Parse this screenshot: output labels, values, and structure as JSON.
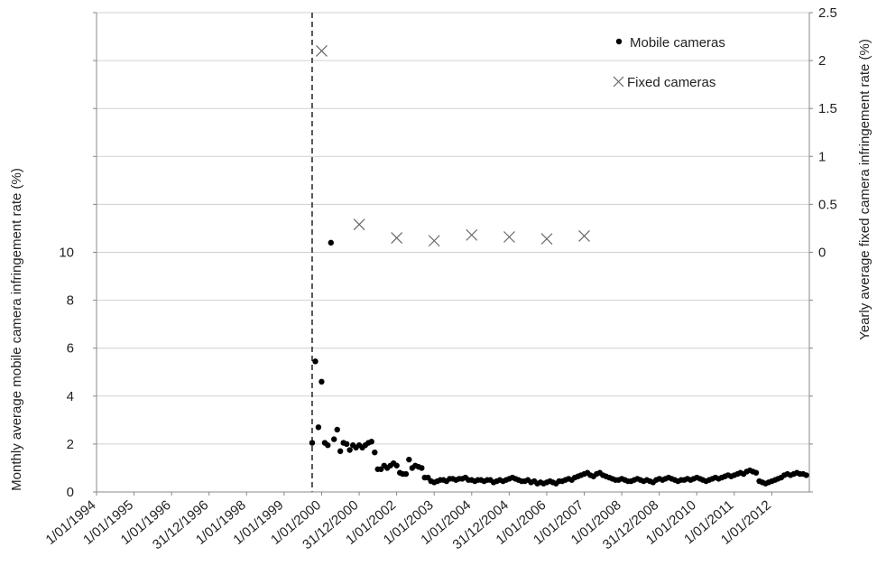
{
  "chart_data": {
    "type": "scatter",
    "title": "",
    "ylabel_left": "Monthly average mobile camera infringement rate (%)",
    "ylabel_right": "Yearly average fixed camera infringement rate (%)",
    "x_tick_labels": [
      "1/01/1994",
      "1/01/1995",
      "1/01/1996",
      "31/12/1996",
      "1/01/1998",
      "1/01/1999",
      "1/01/2000",
      "31/12/2000",
      "1/01/2002",
      "1/01/2003",
      "1/01/2004",
      "31/12/2004",
      "1/01/2006",
      "1/01/2007",
      "1/01/2008",
      "31/12/2008",
      "1/01/2010",
      "1/01/2011",
      "1/01/2012"
    ],
    "x_range": [
      "1994-01-01",
      "2012-12-31"
    ],
    "y_left_ticks": [
      "0",
      "2",
      "4",
      "6",
      "8",
      "10"
    ],
    "y_left_range": [
      0,
      20
    ],
    "y_right_ticks": [
      "0",
      "0.5",
      "1",
      "1.5",
      "2",
      "2.5"
    ],
    "y_right_range": [
      -2.5,
      2.5
    ],
    "event_line_date": "1999-10-01",
    "grid": "horizontal",
    "legend_position": "top-right",
    "series": [
      {
        "name": "Mobile cameras",
        "axis": "left",
        "marker": "dot",
        "color": "#000000",
        "values": [
          [
            "1999-10-01",
            2.05
          ],
          [
            "1999-11-01",
            5.45
          ],
          [
            "1999-12-01",
            2.7
          ],
          [
            "2000-01-01",
            4.6
          ],
          [
            "2000-02-01",
            2.05
          ],
          [
            "2000-03-01",
            1.95
          ],
          [
            "2000-04-01",
            10.4
          ],
          [
            "2000-05-01",
            2.2
          ],
          [
            "2000-06-01",
            2.6
          ],
          [
            "2000-07-01",
            1.7
          ],
          [
            "2000-08-01",
            2.05
          ],
          [
            "2000-09-01",
            2.0
          ],
          [
            "2000-10-01",
            1.75
          ],
          [
            "2000-11-01",
            1.95
          ],
          [
            "2000-12-01",
            1.85
          ],
          [
            "2001-01-01",
            1.95
          ],
          [
            "2001-02-01",
            1.85
          ],
          [
            "2001-03-01",
            1.95
          ],
          [
            "2001-04-01",
            2.05
          ],
          [
            "2001-05-01",
            2.1
          ],
          [
            "2001-06-01",
            1.65
          ],
          [
            "2001-07-01",
            0.95
          ],
          [
            "2001-08-01",
            0.95
          ],
          [
            "2001-09-01",
            1.1
          ],
          [
            "2001-10-01",
            1.0
          ],
          [
            "2001-11-01",
            1.1
          ],
          [
            "2001-12-01",
            1.2
          ],
          [
            "2002-01-01",
            1.1
          ],
          [
            "2002-02-01",
            0.8
          ],
          [
            "2002-03-01",
            0.75
          ],
          [
            "2002-04-01",
            0.75
          ],
          [
            "2002-05-01",
            1.35
          ],
          [
            "2002-06-01",
            1.0
          ],
          [
            "2002-07-01",
            1.1
          ],
          [
            "2002-08-01",
            1.05
          ],
          [
            "2002-09-01",
            1.0
          ],
          [
            "2002-10-01",
            0.6
          ],
          [
            "2002-11-01",
            0.6
          ],
          [
            "2002-12-01",
            0.45
          ],
          [
            "2003-01-01",
            0.4
          ],
          [
            "2003-02-01",
            0.45
          ],
          [
            "2003-03-01",
            0.5
          ],
          [
            "2003-04-01",
            0.5
          ],
          [
            "2003-05-01",
            0.45
          ],
          [
            "2003-06-01",
            0.55
          ],
          [
            "2003-07-01",
            0.55
          ],
          [
            "2003-08-01",
            0.5
          ],
          [
            "2003-09-01",
            0.55
          ],
          [
            "2003-10-01",
            0.55
          ],
          [
            "2003-11-01",
            0.6
          ],
          [
            "2003-12-01",
            0.5
          ],
          [
            "2004-01-01",
            0.5
          ],
          [
            "2004-02-01",
            0.45
          ],
          [
            "2004-03-01",
            0.5
          ],
          [
            "2004-04-01",
            0.5
          ],
          [
            "2004-05-01",
            0.45
          ],
          [
            "2004-06-01",
            0.5
          ],
          [
            "2004-07-01",
            0.5
          ],
          [
            "2004-08-01",
            0.4
          ],
          [
            "2004-09-01",
            0.45
          ],
          [
            "2004-10-01",
            0.5
          ],
          [
            "2004-11-01",
            0.45
          ],
          [
            "2004-12-01",
            0.5
          ],
          [
            "2005-01-01",
            0.55
          ],
          [
            "2005-02-01",
            0.6
          ],
          [
            "2005-03-01",
            0.55
          ],
          [
            "2005-04-01",
            0.5
          ],
          [
            "2005-05-01",
            0.45
          ],
          [
            "2005-06-01",
            0.45
          ],
          [
            "2005-07-01",
            0.5
          ],
          [
            "2005-08-01",
            0.4
          ],
          [
            "2005-09-01",
            0.45
          ],
          [
            "2005-10-01",
            0.35
          ],
          [
            "2005-11-01",
            0.4
          ],
          [
            "2005-12-01",
            0.35
          ],
          [
            "2006-01-01",
            0.4
          ],
          [
            "2006-02-01",
            0.45
          ],
          [
            "2006-03-01",
            0.4
          ],
          [
            "2006-04-01",
            0.35
          ],
          [
            "2006-05-01",
            0.45
          ],
          [
            "2006-06-01",
            0.45
          ],
          [
            "2006-07-01",
            0.5
          ],
          [
            "2006-08-01",
            0.55
          ],
          [
            "2006-09-01",
            0.5
          ],
          [
            "2006-10-01",
            0.6
          ],
          [
            "2006-11-01",
            0.65
          ],
          [
            "2006-12-01",
            0.7
          ],
          [
            "2007-01-01",
            0.75
          ],
          [
            "2007-02-01",
            0.8
          ],
          [
            "2007-03-01",
            0.7
          ],
          [
            "2007-04-01",
            0.65
          ],
          [
            "2007-05-01",
            0.75
          ],
          [
            "2007-06-01",
            0.8
          ],
          [
            "2007-07-01",
            0.7
          ],
          [
            "2007-08-01",
            0.65
          ],
          [
            "2007-09-01",
            0.6
          ],
          [
            "2007-10-01",
            0.55
          ],
          [
            "2007-11-01",
            0.5
          ],
          [
            "2007-12-01",
            0.5
          ],
          [
            "2008-01-01",
            0.55
          ],
          [
            "2008-02-01",
            0.5
          ],
          [
            "2008-03-01",
            0.45
          ],
          [
            "2008-04-01",
            0.45
          ],
          [
            "2008-05-01",
            0.5
          ],
          [
            "2008-06-01",
            0.55
          ],
          [
            "2008-07-01",
            0.5
          ],
          [
            "2008-08-01",
            0.45
          ],
          [
            "2008-09-01",
            0.5
          ],
          [
            "2008-10-01",
            0.45
          ],
          [
            "2008-11-01",
            0.4
          ],
          [
            "2008-12-01",
            0.5
          ],
          [
            "2009-01-01",
            0.55
          ],
          [
            "2009-02-01",
            0.5
          ],
          [
            "2009-03-01",
            0.55
          ],
          [
            "2009-04-01",
            0.6
          ],
          [
            "2009-05-01",
            0.55
          ],
          [
            "2009-06-01",
            0.5
          ],
          [
            "2009-07-01",
            0.45
          ],
          [
            "2009-08-01",
            0.5
          ],
          [
            "2009-09-01",
            0.5
          ],
          [
            "2009-10-01",
            0.55
          ],
          [
            "2009-11-01",
            0.5
          ],
          [
            "2009-12-01",
            0.55
          ],
          [
            "2010-01-01",
            0.6
          ],
          [
            "2010-02-01",
            0.55
          ],
          [
            "2010-03-01",
            0.5
          ],
          [
            "2010-04-01",
            0.45
          ],
          [
            "2010-05-01",
            0.5
          ],
          [
            "2010-06-01",
            0.55
          ],
          [
            "2010-07-01",
            0.6
          ],
          [
            "2010-08-01",
            0.55
          ],
          [
            "2010-09-01",
            0.6
          ],
          [
            "2010-10-01",
            0.65
          ],
          [
            "2010-11-01",
            0.7
          ],
          [
            "2010-12-01",
            0.65
          ],
          [
            "2011-01-01",
            0.7
          ],
          [
            "2011-02-01",
            0.75
          ],
          [
            "2011-03-01",
            0.8
          ],
          [
            "2011-04-01",
            0.75
          ],
          [
            "2011-05-01",
            0.85
          ],
          [
            "2011-06-01",
            0.9
          ],
          [
            "2011-07-01",
            0.85
          ],
          [
            "2011-08-01",
            0.8
          ],
          [
            "2011-09-01",
            0.45
          ],
          [
            "2011-10-01",
            0.4
          ],
          [
            "2011-11-01",
            0.35
          ],
          [
            "2011-12-01",
            0.4
          ],
          [
            "2012-01-01",
            0.45
          ],
          [
            "2012-02-01",
            0.5
          ],
          [
            "2012-03-01",
            0.55
          ],
          [
            "2012-04-01",
            0.6
          ],
          [
            "2012-05-01",
            0.7
          ],
          [
            "2012-06-01",
            0.75
          ],
          [
            "2012-07-01",
            0.7
          ],
          [
            "2012-08-01",
            0.75
          ],
          [
            "2012-09-01",
            0.8
          ],
          [
            "2012-10-01",
            0.75
          ],
          [
            "2012-11-01",
            0.75
          ],
          [
            "2012-12-01",
            0.7
          ]
        ]
      },
      {
        "name": "Fixed cameras",
        "axis": "right",
        "marker": "x",
        "color": "#666666",
        "values": [
          [
            "2000-01-01",
            2.1
          ],
          [
            "2001-01-01",
            0.29
          ],
          [
            "2002-01-01",
            0.15
          ],
          [
            "2003-01-01",
            0.12
          ],
          [
            "2004-01-01",
            0.18
          ],
          [
            "2005-01-01",
            0.16
          ],
          [
            "2006-01-01",
            0.14
          ],
          [
            "2007-01-01",
            0.17
          ]
        ]
      }
    ]
  }
}
